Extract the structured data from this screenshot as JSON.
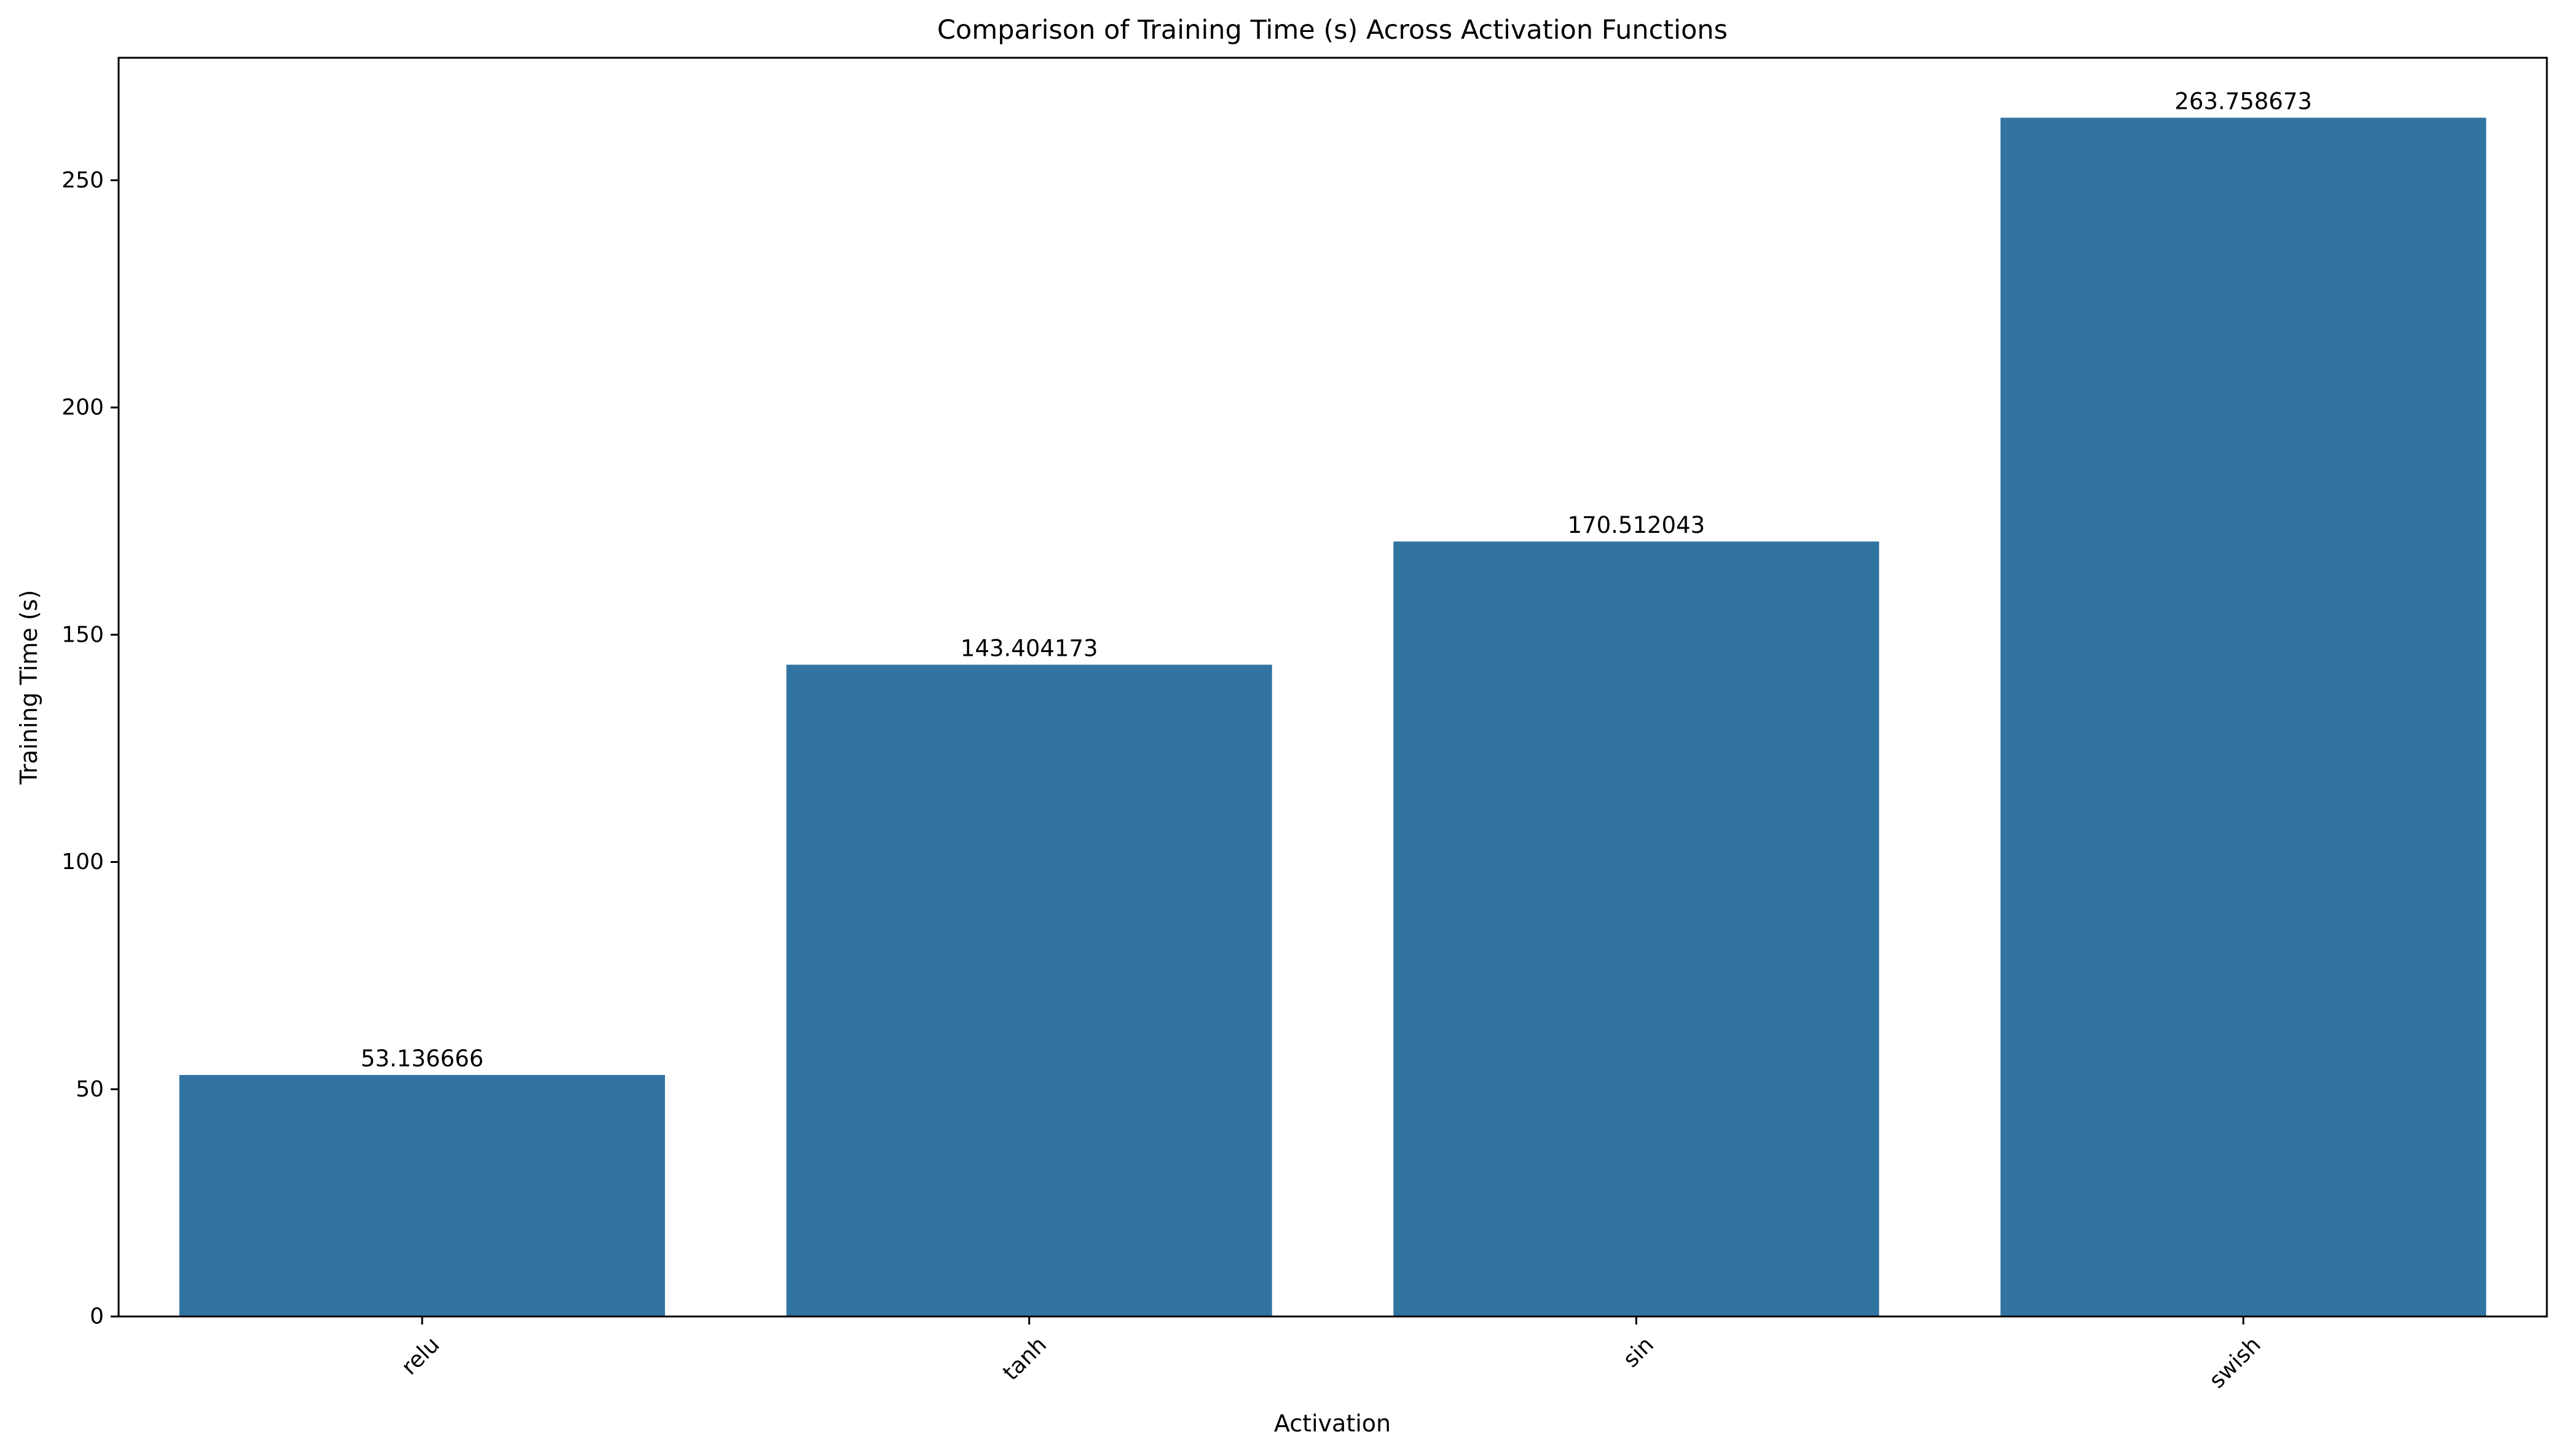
{
  "chart_data": {
    "type": "bar",
    "title": "Comparison of Training Time (s) Across Activation Functions",
    "xlabel": "Activation",
    "ylabel": "Training Time (s)",
    "categories": [
      "relu",
      "tanh",
      "sin",
      "swish"
    ],
    "values": [
      53.136666,
      143.404173,
      170.512043,
      263.758673
    ],
    "data_labels": [
      "53.136666",
      "143.404173",
      "170.512043",
      "263.758673"
    ],
    "yticks": [
      0,
      50,
      100,
      150,
      200,
      250
    ],
    "ylim": [
      0,
      276.946607
    ],
    "grid": false,
    "legend": "none",
    "bar_color": "#3274a1",
    "x_tick_rotation": -45
  }
}
